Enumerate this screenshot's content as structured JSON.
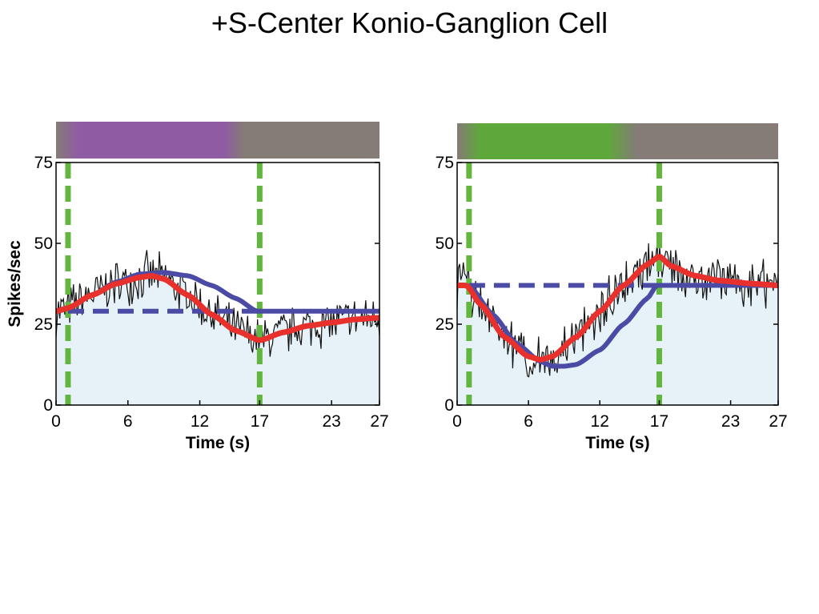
{
  "page": {
    "title": "+S-Center Konio-Ganglion Cell"
  },
  "colors": {
    "fill": "#e6f2f8",
    "trace": "#111111",
    "fit": "#e8302c",
    "model": "#4b4ba6",
    "marker": "#63b63d",
    "bar_gray": "#857b77",
    "violet": "#8f5ca3",
    "green": "#5ea83b"
  },
  "chart_data": [
    {
      "type": "line",
      "stimulus": "violet",
      "xlim": [
        0,
        27
      ],
      "ylim": [
        0,
        75
      ],
      "xticks": [
        "0",
        "6",
        "12",
        "17",
        "23",
        "27"
      ],
      "xtick_values": [
        0,
        6,
        12,
        17,
        23,
        27
      ],
      "yticks": [
        "0",
        "25",
        "50",
        "75"
      ],
      "ytick_values": [
        0,
        25,
        50,
        75
      ],
      "xlabel": "Time (s)",
      "ylabel": "Spikes/sec",
      "markers_x": [
        1,
        17
      ],
      "stimulus_end_x": 15.5,
      "series": [
        {
          "role": "fit",
          "style": "red-solid",
          "x": [
            0,
            1,
            3,
            5,
            7,
            8,
            9,
            11,
            13,
            15,
            17,
            19,
            21,
            23,
            25,
            27
          ],
          "y": [
            29,
            30,
            34,
            37.5,
            39.5,
            40,
            39,
            34,
            28,
            23,
            20,
            22.5,
            24.5,
            25.5,
            26.5,
            27
          ]
        },
        {
          "role": "model",
          "style": "blue-solid",
          "x": [
            1,
            3,
            5,
            7,
            9,
            11,
            13,
            15,
            16.8,
            18,
            27
          ],
          "y": [
            30,
            34,
            38,
            40.5,
            41,
            40,
            37,
            33,
            29,
            29,
            29
          ]
        },
        {
          "role": "baseline",
          "style": "blue-dashed",
          "x": [
            1,
            17
          ],
          "y": [
            29,
            29
          ]
        },
        {
          "role": "trace",
          "style": "black-thin",
          "noise_seed": 7,
          "noise_amp": 6.5,
          "x": [
            0,
            1,
            3,
            5,
            7,
            8,
            9,
            11,
            13,
            15,
            17,
            19,
            21,
            23,
            25,
            27
          ],
          "y": [
            29,
            30,
            34,
            37.5,
            39.5,
            40,
            39,
            34,
            28,
            23,
            20,
            22.5,
            24.5,
            25.5,
            26.5,
            27
          ]
        }
      ]
    },
    {
      "type": "line",
      "stimulus": "green",
      "xlim": [
        0,
        27
      ],
      "ylim": [
        0,
        75
      ],
      "xticks": [
        "0",
        "6",
        "12",
        "17",
        "23",
        "27"
      ],
      "xtick_values": [
        0,
        6,
        12,
        17,
        23,
        27
      ],
      "yticks": [
        "0",
        "25",
        "50",
        "75"
      ],
      "ytick_values": [
        0,
        25,
        50,
        75
      ],
      "xlabel": "Time (s)",
      "ylabel": "",
      "markers_x": [
        1,
        17
      ],
      "stimulus_end_x": 15,
      "series": [
        {
          "role": "fit",
          "style": "red-solid",
          "x": [
            0,
            0.8,
            2,
            4,
            6,
            7,
            8,
            10,
            12,
            14,
            16,
            17,
            18,
            20,
            22,
            25,
            27
          ],
          "y": [
            37,
            37,
            31,
            21,
            15,
            14,
            15,
            21,
            29,
            37,
            43.5,
            46,
            43,
            40,
            38.5,
            37.5,
            37
          ]
        },
        {
          "role": "model",
          "style": "blue-solid",
          "x": [
            1,
            3,
            5,
            7,
            8,
            9,
            10,
            12,
            14,
            16,
            16.8,
            18,
            27
          ],
          "y": [
            37,
            28,
            19,
            13.5,
            12,
            12,
            12.5,
            17,
            25,
            33,
            37,
            37,
            37
          ]
        },
        {
          "role": "baseline",
          "style": "blue-dashed",
          "x": [
            1,
            16.8
          ],
          "y": [
            37,
            37
          ]
        },
        {
          "role": "trace",
          "style": "black-thin",
          "noise_seed": 13,
          "noise_amp": 6.5,
          "x": [
            0,
            0.8,
            2,
            4,
            6,
            7,
            8,
            10,
            12,
            14,
            16,
            17,
            18,
            20,
            22,
            25,
            27
          ],
          "y": [
            37,
            37,
            31,
            21,
            15,
            14,
            15,
            21,
            29,
            37,
            43.5,
            46,
            43,
            40,
            38.5,
            37.5,
            37
          ]
        }
      ]
    }
  ]
}
